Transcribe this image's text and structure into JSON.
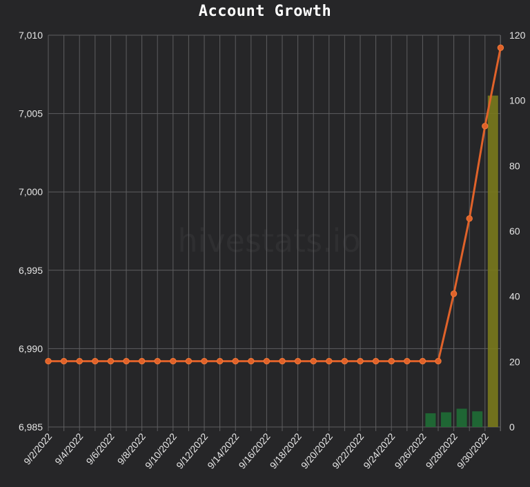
{
  "chart_data": {
    "type": "line",
    "title": "Account Growth",
    "watermark": "hivestats.io",
    "categories": [
      "9/2/2022",
      "9/3/2022",
      "9/4/2022",
      "9/5/2022",
      "9/6/2022",
      "9/7/2022",
      "9/8/2022",
      "9/9/2022",
      "9/10/2022",
      "9/11/2022",
      "9/12/2022",
      "9/13/2022",
      "9/14/2022",
      "9/15/2022",
      "9/16/2022",
      "9/17/2022",
      "9/18/2022",
      "9/19/2022",
      "9/20/2022",
      "9/21/2022",
      "9/22/2022",
      "9/23/2022",
      "9/24/2022",
      "9/25/2022",
      "9/26/2022",
      "9/27/2022",
      "9/28/2022",
      "9/29/2022",
      "9/30/2022",
      "10/1/2022"
    ],
    "x_tick_labels": [
      "9/2/2022",
      "9/4/2022",
      "9/6/2022",
      "9/8/2022",
      "9/10/2022",
      "9/12/2022",
      "9/14/2022",
      "9/16/2022",
      "9/18/2022",
      "9/20/2022",
      "9/22/2022",
      "9/24/2022",
      "9/26/2022",
      "9/28/2022",
      "9/30/2022"
    ],
    "y_left": {
      "min": 6985,
      "max": 7010,
      "ticks": [
        6985,
        6990,
        6995,
        7000,
        7005,
        7010
      ]
    },
    "y_right": {
      "min": 0,
      "max": 120,
      "ticks": [
        0,
        20,
        40,
        60,
        80,
        100,
        120
      ]
    },
    "grid": true,
    "series": [
      {
        "type": "line",
        "axis": "left",
        "color": "#e0622a",
        "values": [
          6989.2,
          6989.2,
          6989.2,
          6989.2,
          6989.2,
          6989.2,
          6989.2,
          6989.2,
          6989.2,
          6989.2,
          6989.2,
          6989.2,
          6989.2,
          6989.2,
          6989.2,
          6989.2,
          6989.2,
          6989.2,
          6989.2,
          6989.2,
          6989.2,
          6989.2,
          6989.2,
          6989.2,
          6989.2,
          6989.2,
          6993.5,
          6998.3,
          7004.2,
          7009.2
        ]
      },
      {
        "type": "bar",
        "axis": "right",
        "color": "#1f6e35",
        "values": [
          0,
          0,
          0,
          0,
          0,
          0,
          0,
          0,
          0,
          0,
          0,
          0,
          0,
          0,
          0,
          0,
          0,
          0,
          0,
          0,
          0,
          0,
          0,
          0,
          4.2,
          4.5,
          5.6,
          4.8,
          0,
          0
        ]
      },
      {
        "type": "bar",
        "axis": "right",
        "color": "#7a7a1c",
        "values": [
          0,
          0,
          0,
          0,
          0,
          0,
          0,
          0,
          0,
          0,
          0,
          0,
          0,
          0,
          0,
          0,
          0,
          0,
          0,
          0,
          0,
          0,
          0,
          0,
          0,
          0,
          0,
          0,
          101.5,
          0
        ]
      }
    ]
  }
}
